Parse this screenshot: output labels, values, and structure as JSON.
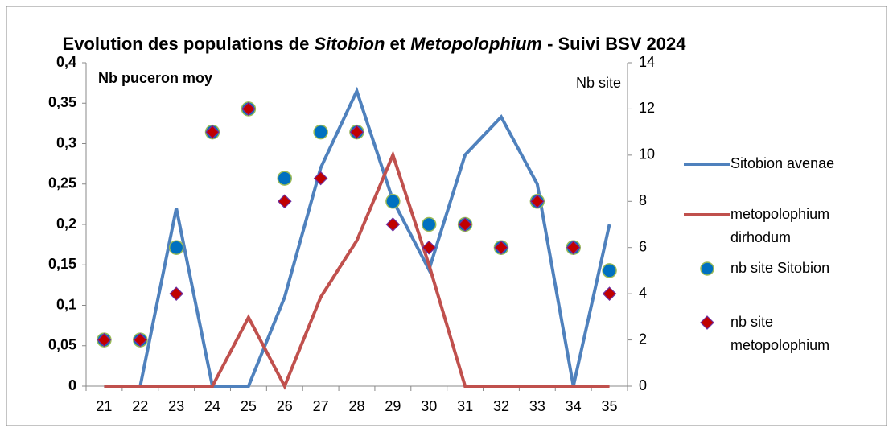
{
  "chart_data": {
    "type": "line",
    "title": [
      "Evolution des populations de ",
      "Sitobion",
      " et ",
      "Metopolophium",
      " - Suivi BSV 2024"
    ],
    "y_label": "Nb puceron moy",
    "y2_label": "Nb site",
    "categories": [
      "21",
      "22",
      "23",
      "24",
      "25",
      "26",
      "27",
      "28",
      "29",
      "30",
      "31",
      "32",
      "33",
      "34",
      "35"
    ],
    "ylim": [
      0,
      0.4
    ],
    "yticks": [
      0,
      {
        "value": 0.05,
        "label": "0,05"
      },
      {
        "value": 0.1,
        "label": "0,1"
      },
      {
        "value": 0.15,
        "label": "0,15"
      },
      {
        "value": 0.2,
        "label": "0,2"
      },
      {
        "value": 0.25,
        "label": "0,25"
      },
      {
        "value": 0.3,
        "label": "0,3"
      },
      {
        "value": 0.35,
        "label": "0,35"
      },
      {
        "value": 0.4,
        "label": "0,4"
      }
    ],
    "y2lim": [
      0,
      14
    ],
    "y2ticks": [
      0,
      2,
      4,
      6,
      8,
      10,
      12,
      14
    ],
    "grid": false,
    "legend": "right",
    "series": [
      {
        "name": "Sitobion avenae",
        "type": "line",
        "color": "#4f81bd",
        "values": [
          0,
          0,
          0.22,
          0,
          0,
          0.11,
          0.27,
          0.365,
          0.23,
          0.144,
          0.286,
          0.333,
          0.25,
          0,
          0.2
        ]
      },
      {
        "name": "metopolophium dirhodum",
        "type": "line",
        "color": "#c0504d",
        "values": [
          0,
          0,
          0,
          0,
          0.085,
          0,
          0.11,
          0.18,
          0.286,
          0.15,
          0,
          0,
          0,
          0,
          0
        ]
      },
      {
        "name": "nb site Sitobion",
        "type": "scatter",
        "marker": "circle",
        "axis": "y2",
        "color": "#0070c0",
        "edge_color": "#9bbb59",
        "values": [
          2,
          2,
          6,
          11,
          12,
          9,
          11,
          11,
          8,
          7,
          7,
          6,
          8,
          6,
          5
        ]
      },
      {
        "name": "nb site metopolophium",
        "type": "scatter",
        "marker": "diamond",
        "axis": "y2",
        "color": "#c00000",
        "edge_color": "#7030a0",
        "values": [
          2,
          2,
          4,
          11,
          12,
          8,
          9,
          11,
          7,
          6,
          7,
          6,
          8,
          6,
          4
        ]
      }
    ]
  }
}
